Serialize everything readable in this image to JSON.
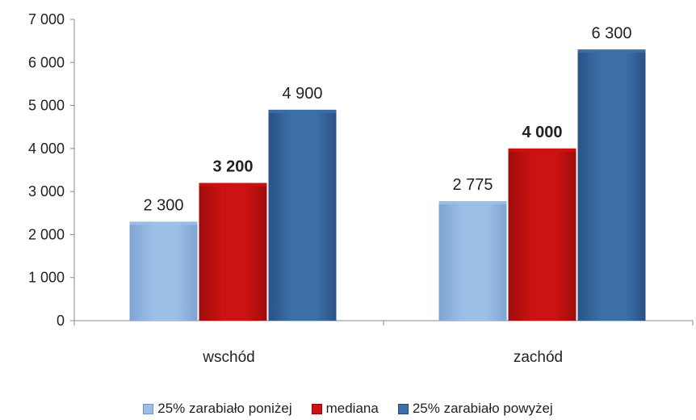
{
  "chart_data": {
    "type": "bar",
    "categories": [
      "wschód",
      "zachód"
    ],
    "series": [
      {
        "name": "25% zarabiało poniżej",
        "values": [
          2300,
          2775
        ],
        "labels": [
          "2 300",
          "2 775"
        ],
        "bold": false,
        "color": "#9cbfe6",
        "dark": "#7ea4d0"
      },
      {
        "name": "mediana",
        "values": [
          3200,
          4000
        ],
        "labels": [
          "3 200",
          "4 000"
        ],
        "bold": true,
        "color": "#cc1212",
        "dark": "#9e0c0c"
      },
      {
        "name": "25% zarabiało powyżej",
        "values": [
          4900,
          6300
        ],
        "labels": [
          "4 900",
          "6 300"
        ],
        "bold": false,
        "color": "#3e6fa8",
        "dark": "#2a5286"
      }
    ],
    "y_ticks": [
      "0",
      "1 000",
      "2 000",
      "3 000",
      "4 000",
      "5 000",
      "6 000",
      "7 000"
    ],
    "ylim": [
      0,
      7000
    ],
    "title": "",
    "xlabel": "",
    "ylabel": "",
    "grid": false,
    "legend_position": "bottom"
  }
}
